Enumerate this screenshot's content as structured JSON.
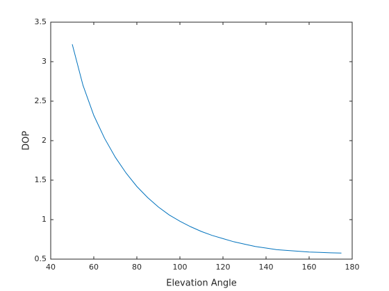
{
  "chart_data": {
    "type": "line",
    "xlabel": "Elevation Angle",
    "ylabel": "DOP",
    "x": [
      50,
      55,
      60,
      65,
      70,
      75,
      80,
      85,
      90,
      95,
      100,
      105,
      110,
      115,
      120,
      125,
      130,
      135,
      140,
      145,
      150,
      155,
      160,
      165,
      170,
      175
    ],
    "series": [
      {
        "color": "#0072bd",
        "values": [
          3.22,
          2.7,
          2.32,
          2.03,
          1.79,
          1.59,
          1.42,
          1.28,
          1.16,
          1.06,
          0.98,
          0.91,
          0.85,
          0.8,
          0.76,
          0.72,
          0.69,
          0.66,
          0.64,
          0.62,
          0.61,
          0.6,
          0.59,
          0.585,
          0.58,
          0.577
        ]
      }
    ],
    "xlim": [
      40,
      180
    ],
    "xticks": [
      40,
      60,
      80,
      100,
      120,
      140,
      160,
      180
    ],
    "ylim": [
      0.5,
      3.5
    ],
    "yticks": [
      0.5,
      1,
      1.5,
      2,
      2.5,
      3,
      3.5
    ],
    "grid": false
  }
}
